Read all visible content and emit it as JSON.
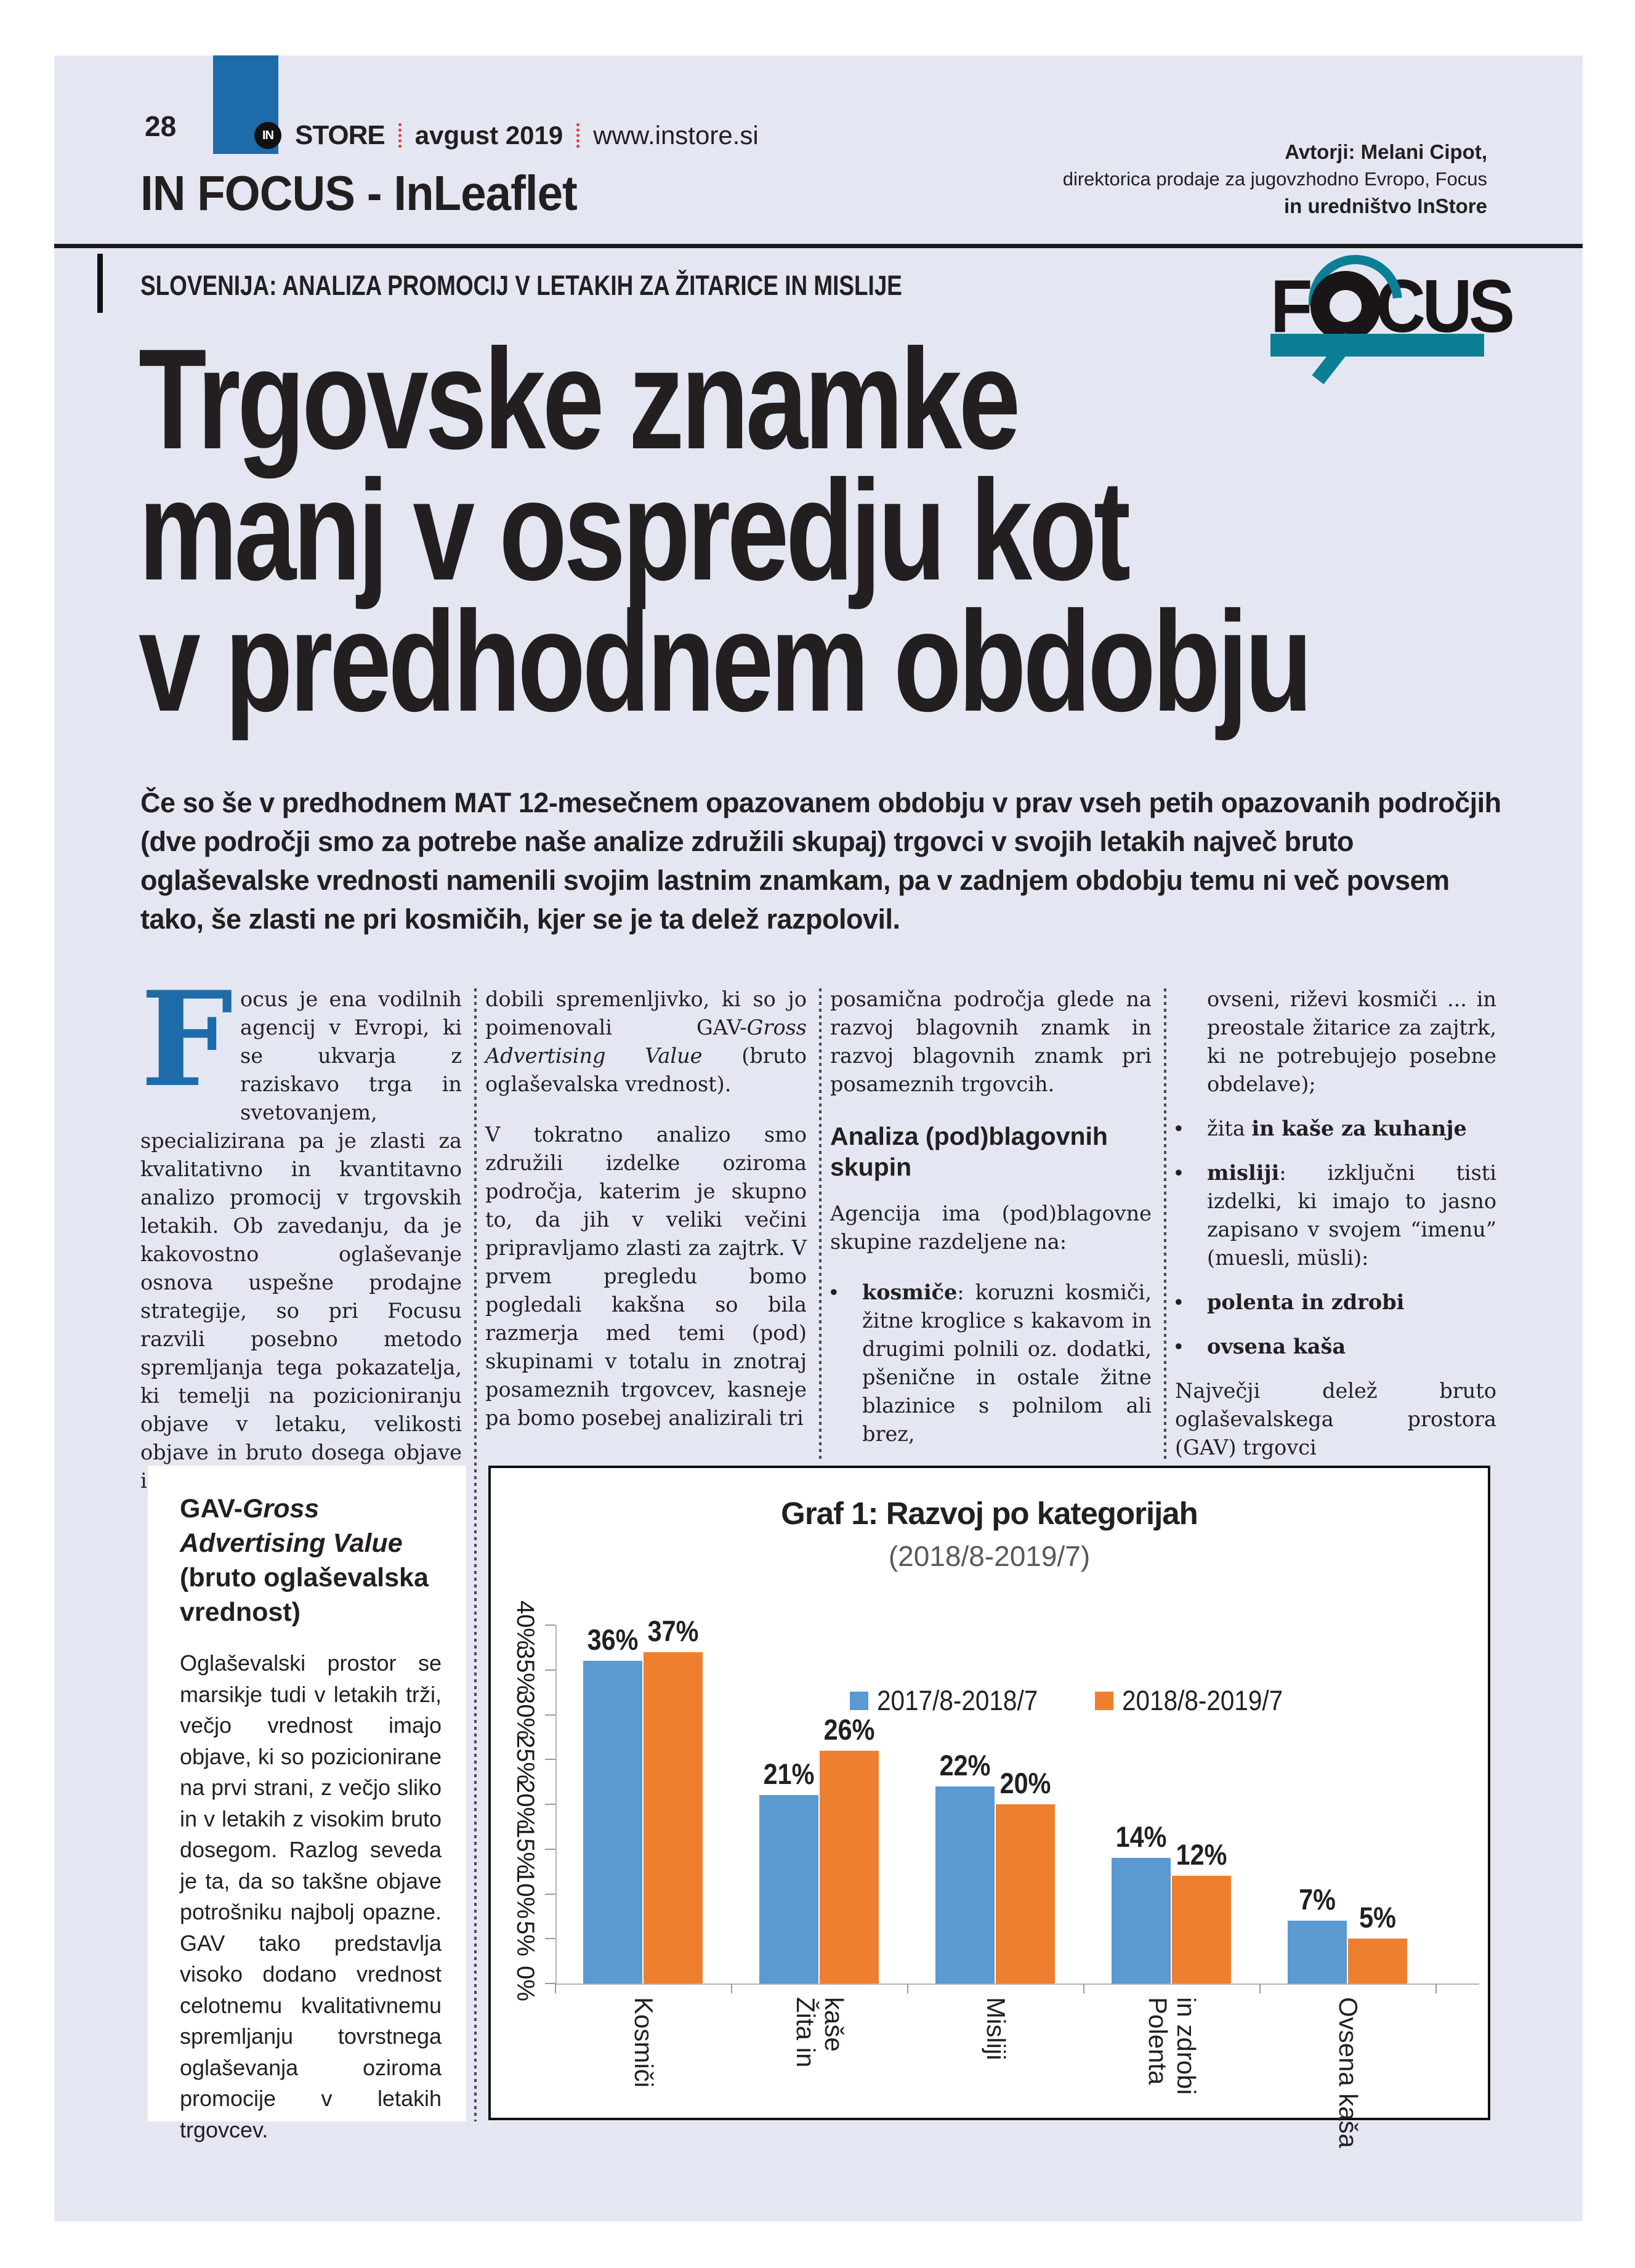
{
  "page": {
    "number": "28",
    "masthead": {
      "in_badge": "IN",
      "store": "STORE",
      "issue": "avgust 2019",
      "site": "www.instore.si"
    },
    "authors": {
      "line1": "Avtorji: Melani Cipot,",
      "line2": "direktorica prodaje za jugovzhodno Evropo, Focus",
      "line3": "in uredništvo InStore"
    },
    "section_title": "IN FOCUS - InLeaflet",
    "kicker": "SLOVENIJA: ANALIZA PROMOCIJ V LETAKIH ZA ŽITARICE IN MISLIJE",
    "headline_lines": [
      "Trgovske znamke",
      "manj v ospredju kot",
      "v predhodnem obdobju"
    ],
    "intro": "Če so še v predhodnem MAT 12-mesečnem opazovanem obdobju v prav vseh petih opazovanih področjih (dve področji smo za potrebe naše analize združili skupaj) trgovci v svojih letakih največ bruto oglaševalske vrednosti namenili svojim lastnim znamkam, pa v zadnjem obdobju temu ni več povsem tako, še zlasti ne pri kosmičih, kjer se je ta delež razpolovil."
  },
  "focus_logo": {
    "f": "F",
    "cus": "CUS"
  },
  "columns": {
    "col1_dropcap": "F",
    "col1": "ocus je ena vodilnih agencij v Evropi, ki se ukvarja z raziskavo trga in svetovanjem, specializirana pa je zlasti za kvalitativno in kvantitavno analizo promocij v trgovskih letakih. Ob zavedanju, da je kakovostno oglaševanje osnova uspešne prodajne strategije, so pri Focusu razvili posebno metodo spremljanja tega pokazatelja, ki temelji na pozicioniranju objave v letaku, velikosti objave in bruto dosega objave in tako",
    "col2_p1_pre": "dobili spremenljivko, ki so jo poimenovali GAV-",
    "col2_p1_it": "Gross Advertising Value",
    "col2_p1_post": " (bruto oglaševalska vrednost).",
    "col2_p2": "V tokratno analizo smo združili izdelke oziroma področja, katerim je skupno to, da jih v veliki večini pripravljamo zlasti za zajtrk. V prvem pregledu bomo pogledali kakšna so bila razmerja med temi (pod) skupinami v totalu in znotraj posameznih trgovcev, kasneje pa bomo posebej analizirali tri",
    "col3_p1": "posamična področja glede na razvoj blagovnih znamk in razvoj blagovnih znamk pri posameznih trgovcih.",
    "col3_heading": "Analiza (pod)blagovnih skupin",
    "col3_p2": "Agencija ima (pod)blagovne skupine razdeljene na:",
    "col3_b1_bold": "kosmiče",
    "col3_b1_rest": ": koruzni kosmiči, žitne kroglice s kakavom in drugimi polnili oz. dodatki, pšenične in ostale žitne blazinice s polnilom ali brez,",
    "col4_cont": "ovseni, riževi kosmiči ... in preostale žitarice za zajtrk, ki ne potrebujejo posebne obdelave);",
    "col4_b1_pre": "žita ",
    "col4_b1_bold": "in kaše za kuhanje",
    "col4_b2_bold": "misliji",
    "col4_b2_rest": ": izključni tisti izdelki, ki imajo to jasno zapisano v svojem “imenu” (muesli, müsli):",
    "col4_b3_bold": "polenta in zdrobi",
    "col4_b4_bold": "ovsena kaša",
    "col4_p2": "Največji delež bruto oglaševalskega prostora (GAV) trgovci"
  },
  "sidebar": {
    "title_pre": "GAV-",
    "title_it": "Gross Advertising Value",
    "title_post": " (bruto oglaševalska vrednost)",
    "body": "Oglaševalski prostor se marsikje tudi v letakih trži, večjo vrednost imajo objave, ki so pozicionirane na prvi strani, z večjo sliko in v letakih z visokim bruto dosegom. Razlog seveda je ta, da so takšne objave potrošniku najbolj opazne. GAV tako predstavlja visoko dodano vrednost celotnemu kvalitativnemu spremljanju tovrstnega oglaševanja oziroma promocije v letakih trgovcev."
  },
  "chart_data": {
    "type": "bar",
    "title": "Graf 1: Razvoj po kategorijah",
    "subtitle": "(2018/8-2019/7)",
    "categories": [
      "Kosmiči",
      "Žita in kaše",
      "Misliji",
      "Polenta in zdrobi",
      "Ovsena kaša"
    ],
    "category_label_lines": [
      [
        "Kosmiči"
      ],
      [
        "Žita in",
        "kaše"
      ],
      [
        "Misliji"
      ],
      [
        "Polenta",
        "in zdrobi"
      ],
      [
        "Ovsena kaša"
      ]
    ],
    "series": [
      {
        "name": "2017/8-2018/7",
        "color": "#5b99d2",
        "values": [
          36,
          21,
          22,
          14,
          7
        ]
      },
      {
        "name": "2018/8-2019/7",
        "color": "#ee7f2f",
        "values": [
          37,
          26,
          20,
          12,
          5
        ]
      }
    ],
    "value_labels": [
      [
        "36%",
        "21%",
        "22%",
        "14%",
        "7%"
      ],
      [
        "37%",
        "26%",
        "20%",
        "12%",
        "5%"
      ]
    ],
    "xlabel": "",
    "ylabel": "",
    "ylim": [
      0,
      40
    ],
    "ytick_step": 5,
    "yticks": [
      "0%",
      "5%",
      "10%",
      "15%",
      "20%",
      "25%",
      "30%",
      "35%",
      "40%"
    ],
    "grid": false,
    "legend_position": "top-center-in-plot",
    "tick_label_rotation_deg": 90
  },
  "colors": {
    "page_background": "#e4e7f2",
    "accent_blue": "#1d6ca9",
    "accent_teal": "#0b7f96",
    "accent_red": "#e5383b",
    "bar_blue": "#5b99d2",
    "bar_orange": "#ee7f2f",
    "text": "#231f20",
    "subtitle_gray": "#595959"
  }
}
